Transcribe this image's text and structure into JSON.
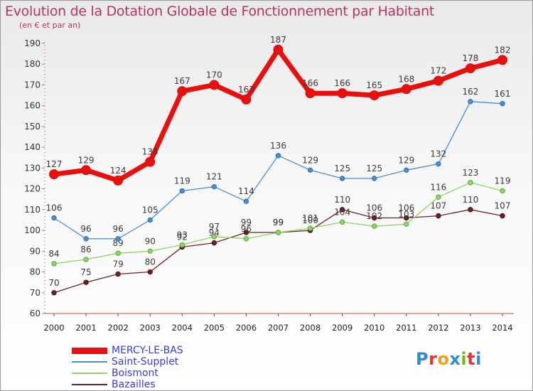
{
  "header": {
    "title": "Evolution de la Dotation Globale de Fonctionnement par Habitant",
    "subtitle": "(en € et par an)"
  },
  "logo": {
    "text": "Proxiti",
    "colors": [
      "#2e8bd8",
      "#e3342f",
      "#f0a01a",
      "#2e8bd8",
      "#7ab51d",
      "#e3342f",
      "#2e8bd8"
    ]
  },
  "chart_data": {
    "type": "line",
    "title": "Evolution de la Dotation Globale de Fonctionnement par Habitant",
    "subtitle": "(en € et par an)",
    "xlabel": "",
    "ylabel": "",
    "x": [
      "2000",
      "2001",
      "2002",
      "2003",
      "2004",
      "2005",
      "2006",
      "2007",
      "2008",
      "2009",
      "2010",
      "2011",
      "2012",
      "2013",
      "2014"
    ],
    "yticks": [
      60,
      70,
      80,
      90,
      100,
      110,
      120,
      130,
      140,
      150,
      160,
      170,
      180,
      190
    ],
    "ylim": [
      60,
      190
    ],
    "grid": false,
    "legend_position": "bottom-left",
    "series": [
      {
        "name": "MERCY-LE-BAS",
        "color": "#e8100e",
        "values": [
          127,
          129,
          124,
          133,
          167,
          170,
          163,
          187,
          166,
          166,
          165,
          168,
          172,
          178,
          182
        ]
      },
      {
        "name": "Saint-Supplet",
        "color": "#4a8fcc",
        "values": [
          106,
          96,
          96,
          105,
          119,
          121,
          114,
          136,
          129,
          125,
          125,
          129,
          132,
          162,
          161
        ]
      },
      {
        "name": "Boismont",
        "color": "#8fd466",
        "values": [
          84,
          86,
          89,
          90,
          93,
          97,
          96,
          99,
          101,
          104,
          102,
          103,
          116,
          123,
          119
        ]
      },
      {
        "name": "Bazailles",
        "color": "#6e2028",
        "values": [
          70,
          75,
          79,
          80,
          92,
          94,
          99,
          99,
          100,
          110,
          106,
          106,
          107,
          110,
          107
        ]
      }
    ]
  }
}
